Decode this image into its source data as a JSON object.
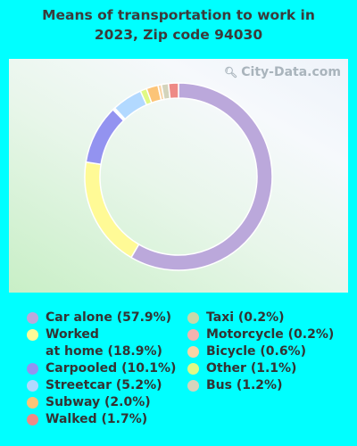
{
  "title": [
    "Means of transportation to work in",
    "2023, Zip code 94030"
  ],
  "watermark": "City-Data.com",
  "chart_data": {
    "type": "pie",
    "donut": true,
    "categories": [
      "Car alone",
      "Worked at home",
      "Carpooled",
      "Streetcar",
      "Subway",
      "Walked",
      "Taxi",
      "Motorcycle",
      "Bicycle",
      "Other",
      "Bus"
    ],
    "values": [
      57.9,
      18.9,
      10.1,
      5.2,
      2.0,
      1.7,
      0.2,
      0.2,
      0.6,
      1.1,
      1.2
    ],
    "slice_order": [
      "Car alone",
      "Worked at home",
      "Carpooled",
      "Motorcycle",
      "Taxi",
      "Streetcar",
      "Other",
      "Subway",
      "Bicycle",
      "Bus",
      "Walked"
    ],
    "colors": {
      "Car alone": "#BBA8DB",
      "Worked at home": "#FFFA96",
      "Carpooled": "#9393F0",
      "Streetcar": "#B2D9FF",
      "Subway": "#FCC477",
      "Walked": "#EE8A86",
      "Taxi": "#C8D9A9",
      "Motorcycle": "#F3B3AF",
      "Bicycle": "#FAD5A6",
      "Other": "#E0F985",
      "Bus": "#D4D4BC"
    }
  },
  "legend": {
    "left": [
      {
        "name": "Car alone",
        "label": "Car alone (57.9%)"
      },
      {
        "name": "Worked at home",
        "label": "Worked\nat home (18.9%)"
      },
      {
        "name": "Carpooled",
        "label": "Carpooled (10.1%)"
      },
      {
        "name": "Streetcar",
        "label": "Streetcar (5.2%)"
      },
      {
        "name": "Subway",
        "label": "Subway (2.0%)"
      },
      {
        "name": "Walked",
        "label": "Walked (1.7%)"
      }
    ],
    "right": [
      {
        "name": "Taxi",
        "label": "Taxi (0.2%)"
      },
      {
        "name": "Motorcycle",
        "label": "Motorcycle (0.2%)"
      },
      {
        "name": "Bicycle",
        "label": "Bicycle (0.6%)"
      },
      {
        "name": "Other",
        "label": "Other (1.1%)"
      },
      {
        "name": "Bus",
        "label": "Bus (1.2%)"
      }
    ]
  }
}
